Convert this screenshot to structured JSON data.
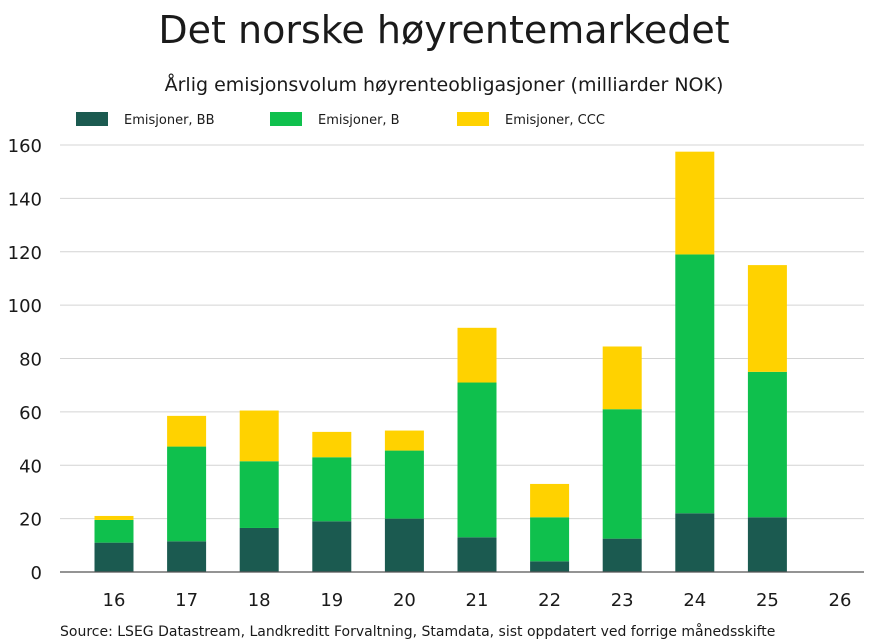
{
  "chart_data": {
    "type": "bar",
    "stacked": true,
    "title": "Det norske høyrentemarkedet",
    "subtitle": "Årlig emisjonsvolum høyrenteobligasjoner (milliarder NOK)",
    "xlabel": "",
    "ylabel": "",
    "categories": [
      "16",
      "17",
      "18",
      "19",
      "20",
      "21",
      "22",
      "23",
      "24",
      "25",
      "26"
    ],
    "ylim": [
      0,
      160
    ],
    "yticks": [
      0,
      20,
      40,
      60,
      80,
      100,
      120,
      140,
      160
    ],
    "grid": true,
    "legend_position": "top",
    "series": [
      {
        "name": "Emisjoner, BB",
        "color": "#1b5a50",
        "values": [
          11,
          11.5,
          16.5,
          19,
          20,
          13,
          4,
          12.5,
          22,
          20.5,
          null
        ]
      },
      {
        "name": "Emisjoner, B",
        "color": "#0fc04d",
        "values": [
          8.5,
          35.5,
          25,
          24,
          25.5,
          58,
          16.5,
          48.5,
          97,
          54.5,
          null
        ]
      },
      {
        "name": "Emisjoner, CCC",
        "color": "#ffd200",
        "values": [
          1.5,
          11.5,
          19,
          9.5,
          7.5,
          20.5,
          12.5,
          23.5,
          38.5,
          40,
          null
        ]
      }
    ],
    "source": "Source: LSEG Datastream, Landkreditt Forvaltning, Stamdata, sist oppdatert ved forrige månedsskifte"
  }
}
